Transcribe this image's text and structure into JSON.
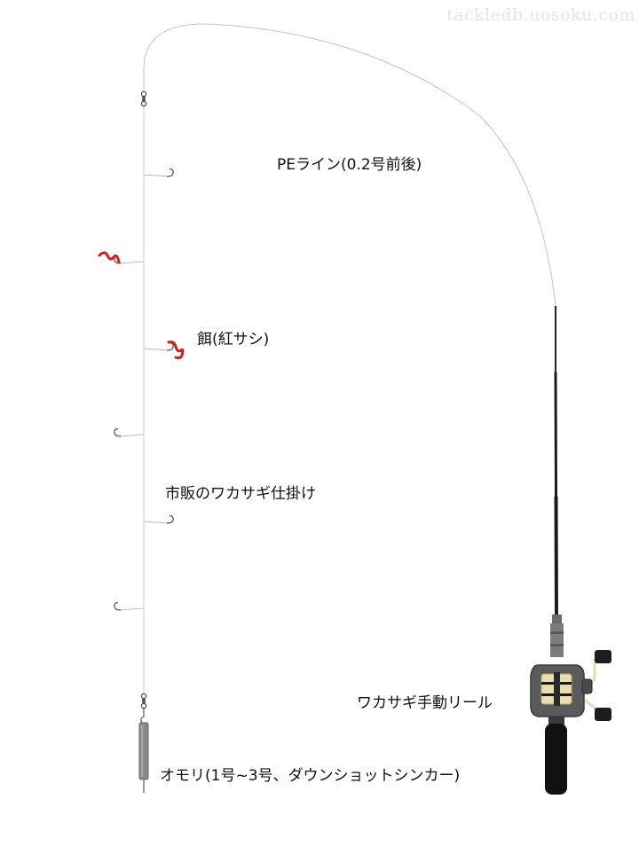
{
  "watermark": "tackledb.uosoku.com",
  "labels": {
    "pe_line": "PEライン(0.2号前後)",
    "bait": "餌(紅サシ)",
    "rig": "市販のワカサギ仕掛け",
    "reel": "ワカサギ手動リール",
    "sinker": "オモリ(1号~3号、ダウンショットシンカー)"
  },
  "colors": {
    "line": "#c4c4c4",
    "bait": "#d0201a",
    "rod": "#1a1a1a",
    "reel_body": "#5a5a5a",
    "spool": "#e9dcb0",
    "sinker": "#8a8a8a"
  },
  "icons": {
    "swivel": "swivel-icon",
    "hook": "hook-icon",
    "bait": "worm-bait-icon",
    "rod": "fishing-rod-icon",
    "reel": "reel-icon",
    "sinker": "sinker-icon"
  }
}
